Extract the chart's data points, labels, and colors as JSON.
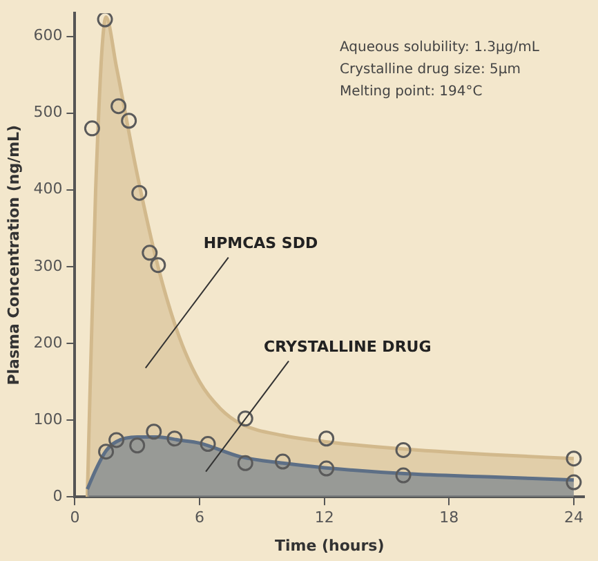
{
  "chart_data": {
    "type": "area",
    "xlabel": "Time (hours)",
    "ylabel": "Plasma Concentration (ng/mL)",
    "xlim": [
      0,
      24.5
    ],
    "xticks": [
      0,
      6,
      12,
      18,
      24
    ],
    "ylim": [
      0,
      630
    ],
    "yticks": [
      0,
      100,
      200,
      300,
      400,
      500,
      600
    ],
    "grid": false,
    "legend": false,
    "series": [
      {
        "color": "#d2b98c",
        "marker": "none",
        "x": [
          0.6,
          1,
          1.5,
          2,
          3,
          4,
          5,
          6,
          7,
          8,
          10,
          12,
          16,
          20,
          24
        ],
        "values": [
          0,
          400,
          625,
          560,
          420,
          300,
          210,
          150,
          115,
          95,
          80,
          72,
          62,
          55,
          50
        ]
      },
      {
        "color": "#5d6f86",
        "marker": "none",
        "x": [
          0.6,
          1,
          1.5,
          2,
          3,
          4,
          5,
          6,
          8,
          10,
          12,
          16,
          20,
          24
        ],
        "values": [
          10,
          35,
          60,
          72,
          78,
          78,
          74,
          70,
          52,
          44,
          38,
          30,
          26,
          22
        ]
      },
      {
        "type": "scatter",
        "color": "#5a5a5a",
        "marker": "circle",
        "x": [
          0.83,
          1.45,
          2.1,
          2.6,
          3.1,
          3.6,
          4,
          8.2,
          12.1,
          15.8,
          24
        ],
        "values": [
          480,
          622,
          509,
          490,
          396,
          318,
          302,
          102,
          76,
          61,
          50
        ]
      },
      {
        "type": "scatter",
        "color": "#5a5a5a",
        "marker": "circle",
        "x": [
          1.5,
          2,
          3,
          3.8,
          4.8,
          6.4,
          8.2,
          10,
          12.1,
          15.8,
          24
        ],
        "values": [
          59,
          74,
          67,
          85,
          76,
          69,
          44,
          46,
          37,
          28,
          19
        ]
      }
    ],
    "annotations": [
      "Aqueous solubility: 1.3µg/mL",
      "Crystalline drug size: 5µm",
      "Melting point: 194°C",
      "HPMCAS SDD",
      "CRYSTALLINE DRUG"
    ]
  }
}
